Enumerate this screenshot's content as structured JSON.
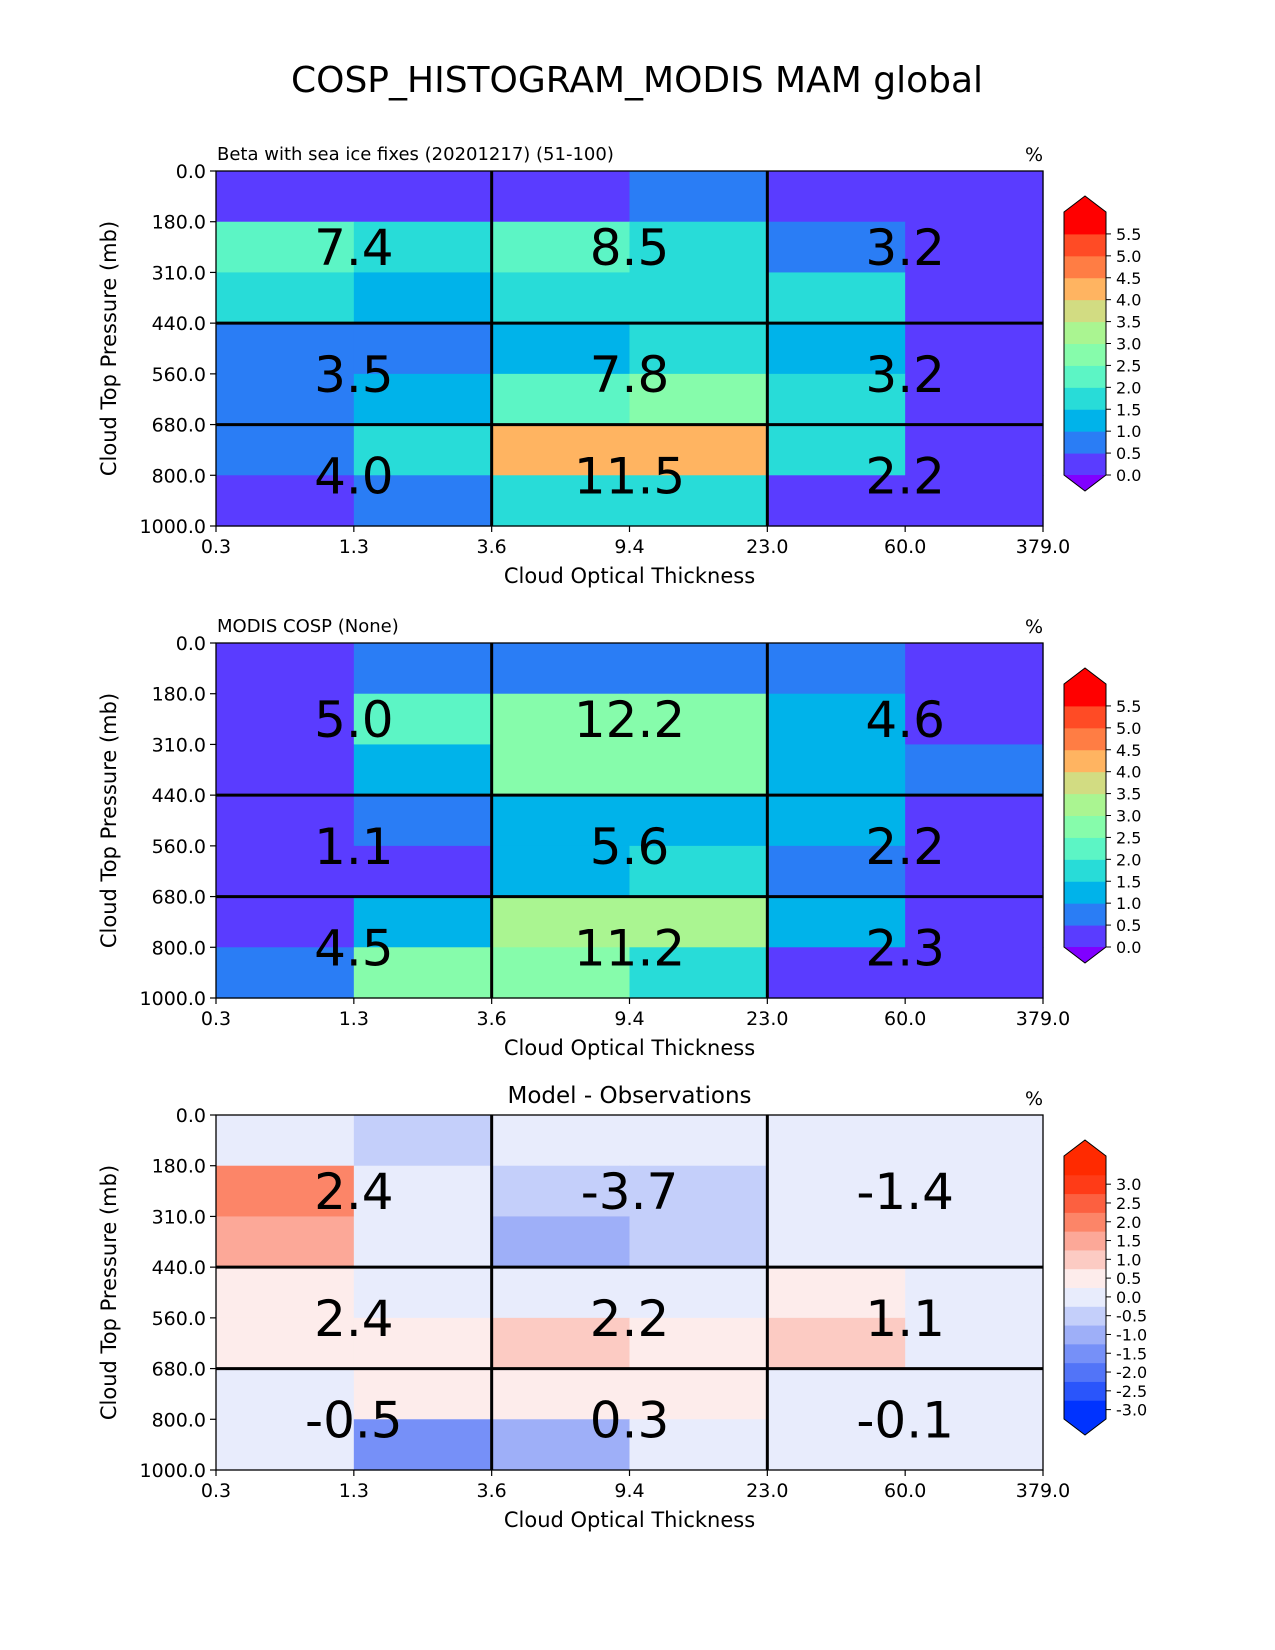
{
  "figure_title": "COSP_HISTOGRAM_MODIS MAM global",
  "chart_data": [
    {
      "type": "heatmap",
      "title": "Beta with sea ice fixes (20201217) (51-100)",
      "units": "%",
      "xlabel": "Cloud Optical Thickness",
      "ylabel": "Cloud Top Pressure (mb)",
      "x_ticks": [
        "0.3",
        "1.3",
        "3.6",
        "9.4",
        "23.0",
        "60.0",
        "379.0"
      ],
      "y_ticks": [
        "0.0",
        "180.0",
        "310.0",
        "440.0",
        "560.0",
        "680.0",
        "800.0",
        "1000.0"
      ],
      "cells": [
        [
          0.2,
          0.2,
          0.2,
          0.9,
          0.2,
          0.2
        ],
        [
          2.4,
          1.9,
          2.3,
          1.9,
          0.9,
          0.2
        ],
        [
          1.9,
          1.3,
          1.9,
          1.8,
          1.8,
          0.2
        ],
        [
          0.9,
          0.9,
          1.2,
          1.8,
          1.1,
          0.2
        ],
        [
          0.9,
          1.3,
          2.3,
          2.6,
          1.7,
          0.2
        ],
        [
          0.9,
          1.8,
          4.2,
          4.2,
          1.8,
          0.2
        ],
        [
          0.2,
          0.9,
          1.8,
          1.8,
          0.2,
          0.2
        ]
      ],
      "box_labels": [
        [
          "7.4",
          "8.5",
          "3.2"
        ],
        [
          "3.5",
          "7.8",
          "3.2"
        ],
        [
          "4.0",
          "11.5",
          "2.2"
        ]
      ],
      "colorbar": {
        "ticks": [
          "0.0",
          "0.5",
          "1.0",
          "1.5",
          "2.0",
          "2.5",
          "3.0",
          "3.5",
          "4.0",
          "4.5",
          "5.0",
          "5.5"
        ],
        "colors": [
          "#5a3cff",
          "#2a7df5",
          "#00b3ea",
          "#28dcd8",
          "#5cf5c5",
          "#86fcab",
          "#aaf591",
          "#d2dc82",
          "#ffb461",
          "#ff7d44",
          "#ff4b25",
          "#ff0000"
        ],
        "under": "#8000ff",
        "over": "#ff0000"
      }
    },
    {
      "type": "heatmap",
      "title": "MODIS COSP (None)",
      "units": "%",
      "xlabel": "Cloud Optical Thickness",
      "ylabel": "Cloud Top Pressure (mb)",
      "x_ticks": [
        "0.3",
        "1.3",
        "3.6",
        "9.4",
        "23.0",
        "60.0",
        "379.0"
      ],
      "y_ticks": [
        "0.0",
        "180.0",
        "310.0",
        "440.0",
        "560.0",
        "680.0",
        "800.0",
        "1000.0"
      ],
      "cells": [
        [
          0.2,
          0.9,
          0.9,
          0.9,
          0.9,
          0.2
        ],
        [
          0.2,
          2.4,
          2.8,
          2.8,
          1.3,
          0.2
        ],
        [
          0.2,
          1.3,
          2.8,
          2.8,
          1.3,
          0.9
        ],
        [
          0.2,
          0.9,
          1.3,
          1.3,
          1.3,
          0.2
        ],
        [
          0.2,
          0.2,
          1.3,
          1.8,
          0.9,
          0.2
        ],
        [
          0.2,
          1.3,
          3.3,
          3.3,
          1.3,
          0.2
        ],
        [
          0.9,
          2.8,
          2.8,
          1.8,
          0.2,
          0.2
        ]
      ],
      "box_labels": [
        [
          "5.0",
          "12.2",
          "4.6"
        ],
        [
          "1.1",
          "5.6",
          "2.2"
        ],
        [
          "4.5",
          "11.2",
          "2.3"
        ]
      ],
      "colorbar": {
        "ticks": [
          "0.0",
          "0.5",
          "1.0",
          "1.5",
          "2.0",
          "2.5",
          "3.0",
          "3.5",
          "4.0",
          "4.5",
          "5.0",
          "5.5"
        ],
        "colors": [
          "#5a3cff",
          "#2a7df5",
          "#00b3ea",
          "#28dcd8",
          "#5cf5c5",
          "#86fcab",
          "#aaf591",
          "#d2dc82",
          "#ffb461",
          "#ff7d44",
          "#ff4b25",
          "#ff0000"
        ],
        "under": "#8000ff",
        "over": "#ff0000"
      }
    },
    {
      "type": "heatmap",
      "title": "Model - Observations",
      "units": "%",
      "xlabel": "Cloud Optical Thickness",
      "ylabel": "Cloud Top Pressure (mb)",
      "x_ticks": [
        "0.3",
        "1.3",
        "3.6",
        "9.4",
        "23.0",
        "60.0",
        "379.0"
      ],
      "y_ticks": [
        "0.0",
        "180.0",
        "310.0",
        "440.0",
        "560.0",
        "680.0",
        "800.0",
        "1000.0"
      ],
      "cells": [
        [
          -0.2,
          -0.7,
          -0.2,
          0.2,
          -0.2,
          -0.2
        ],
        [
          2.0,
          -0.2,
          -0.7,
          -0.7,
          -0.2,
          -0.2
        ],
        [
          1.3,
          0.2,
          -1.2,
          -0.7,
          0.2,
          -0.2
        ],
        [
          0.7,
          0.2,
          0.2,
          0.2,
          0.7,
          -0.2
        ],
        [
          0.7,
          0.7,
          1.2,
          0.7,
          1.2,
          -0.2
        ],
        [
          0.2,
          0.7,
          0.7,
          0.7,
          0.2,
          -0.2
        ],
        [
          -0.2,
          -1.7,
          -1.2,
          0.2,
          -0.2,
          -0.2
        ]
      ],
      "box_labels": [
        [
          "2.4",
          "-3.7",
          "-1.4"
        ],
        [
          "2.4",
          "2.2",
          "1.1"
        ],
        [
          "-0.5",
          "0.3",
          "-0.1"
        ]
      ],
      "colorbar": {
        "ticks": [
          "-3.0",
          "-2.5",
          "-2.0",
          "-1.5",
          "-1.0",
          "-0.5",
          "0.0",
          "0.5",
          "1.0",
          "1.5",
          "2.0",
          "2.5",
          "3.0"
        ],
        "colors": [
          "#0033ff",
          "#2a55fb",
          "#5274f8",
          "#7690f8",
          "#9eaff8",
          "#c4cffa",
          "#e8ecfc",
          "#fdeceb",
          "#fccbc3",
          "#fca898",
          "#fc8568",
          "#fc6040",
          "#ff3b17",
          "#ff2a00"
        ],
        "under": "#0033ff",
        "over": "#ff2a00"
      }
    }
  ]
}
